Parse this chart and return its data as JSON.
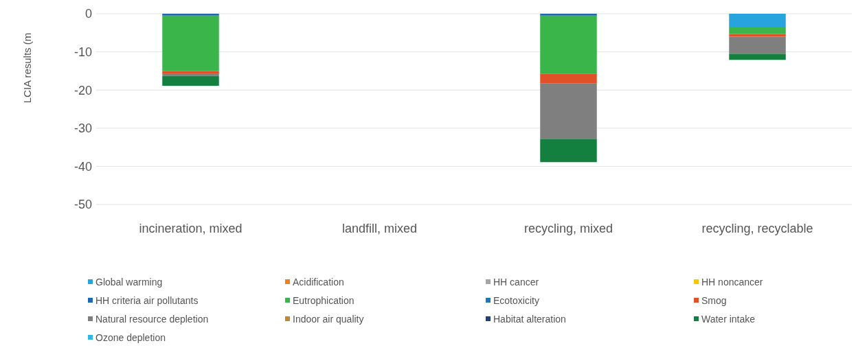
{
  "chart_data": {
    "type": "bar",
    "stacked": true,
    "ylabel": "LCIA results (m",
    "categories": [
      "incineration, mixed",
      "landfill, mixed",
      "recycling, mixed",
      "recycling, recyclable"
    ],
    "ylim": [
      -50,
      0
    ],
    "yticks": [
      -50,
      -40,
      -30,
      -20,
      -10,
      0
    ],
    "grid": "y",
    "legend": "bottom",
    "series": [
      {
        "name": "Global warming",
        "color": "#27a3dd",
        "values": [
          null,
          null,
          null,
          -3.6
        ]
      },
      {
        "name": "Acidification",
        "color": "#f07f20",
        "values": [
          null,
          null,
          null,
          null
        ]
      },
      {
        "name": "HH cancer",
        "color": "#a5a5a5",
        "values": [
          null,
          null,
          null,
          null
        ]
      },
      {
        "name": "HH noncancer",
        "color": "#f5c800",
        "values": [
          null,
          null,
          null,
          null
        ]
      },
      {
        "name": "HH criteria air pollutants",
        "color": "#2166b5",
        "values": [
          -0.5,
          null,
          -0.5,
          null
        ]
      },
      {
        "name": "Eutrophication",
        "color": "#3ab54a",
        "values": [
          -14.5,
          null,
          -15.2,
          -1.7
        ]
      },
      {
        "name": "Ecotoxicity",
        "color": "#1f77b4",
        "values": [
          null,
          null,
          null,
          null
        ]
      },
      {
        "name": "Smog",
        "color": "#e0512a",
        "values": [
          -0.8,
          null,
          -2.6,
          -0.7
        ]
      },
      {
        "name": "Natural resource depletion",
        "color": "#7f7f7f",
        "values": [
          -0.5,
          null,
          -14.5,
          -4.5
        ]
      },
      {
        "name": "Indoor air quality",
        "color": "#c08a2b",
        "values": [
          null,
          null,
          null,
          null
        ]
      },
      {
        "name": "Habitat alteration",
        "color": "#1f3f7f",
        "values": [
          null,
          null,
          null,
          null
        ]
      },
      {
        "name": "Water intake",
        "color": "#148040",
        "values": [
          -2.6,
          null,
          -6.1,
          -1.6
        ]
      },
      {
        "name": "Ozone depletion",
        "color": "#33b5e8",
        "values": [
          null,
          null,
          null,
          null
        ]
      }
    ]
  }
}
